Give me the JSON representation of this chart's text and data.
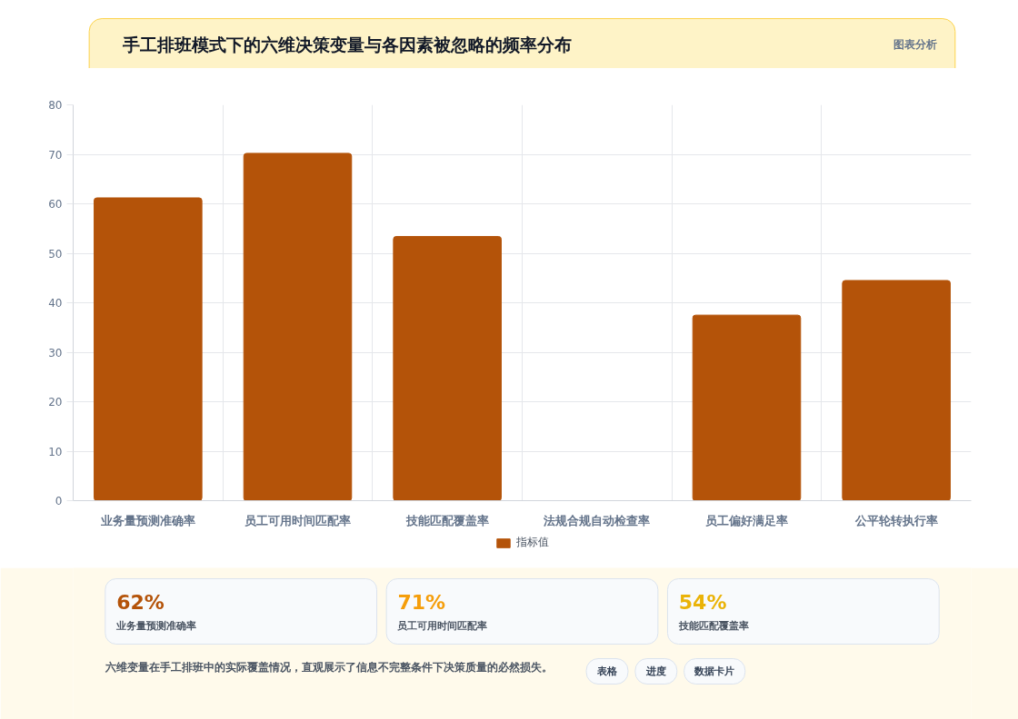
{
  "chart_data": [
    {
      "type": "bar",
      "title": "手工排班模式下的六维决策变量与各因素被忽略的频率分布",
      "categories": [
        "业务量预测准确率",
        "员工可用时间匹配率",
        "技能匹配覆盖率",
        "法规合规自动检查率",
        "员工偏好满足率",
        "公平轮转执行率"
      ],
      "series": [
        {
          "name": "指标值",
          "color": "#b45309",
          "values": [
            61.2,
            70.2,
            53.4,
            0,
            37.5,
            44.5
          ]
        }
      ],
      "ylim": [
        0,
        80
      ],
      "yticks": [
        0,
        10,
        20,
        30,
        40,
        50,
        60,
        70,
        80
      ],
      "grid": true,
      "legend": "bottom",
      "annotations": [
        "图表分析",
        "六维变量在手工排班中的实际覆盖情况，直观展示了信息不完整条件下决策质量的必然损失。",
        "表格",
        "进度",
        "数据卡片"
      ]
    },
    {
      "type": "other",
      "annotations": [
        "62%",
        "业务量预测准确率",
        "71%",
        "员工可用时间匹配率",
        "54%",
        "技能匹配覆盖率"
      ],
      "colors": [
        "#b45309",
        "#f59e0b",
        "#eab308"
      ]
    }
  ]
}
